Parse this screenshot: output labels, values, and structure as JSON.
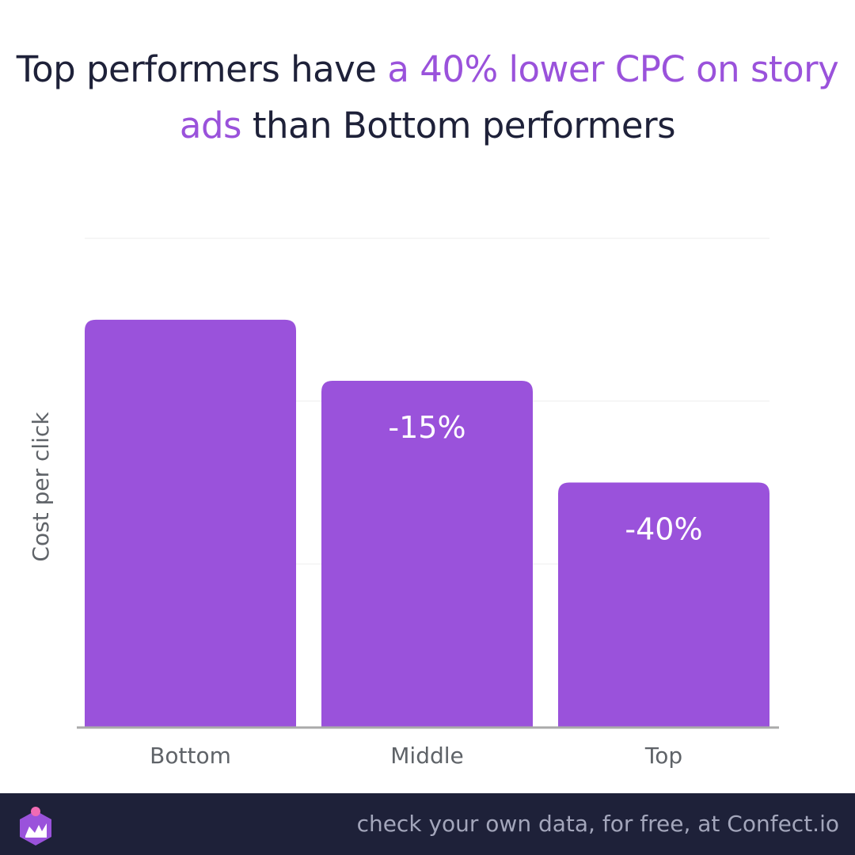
{
  "title": {
    "part1": "Top performers have ",
    "highlight": "a 40% lower CPC on story ads",
    "part2": " than Bottom performers"
  },
  "colors": {
    "bar": "#9a52db",
    "highlight": "#9a52db",
    "title": "#1e2139",
    "footer_bg": "#1e2139",
    "footer_text": "#a3a6bb",
    "axis": "#aaaaaa",
    "grid": "#eeeeee",
    "label": "#5f6368",
    "data_label": "#ffffff"
  },
  "chart_data": {
    "type": "bar",
    "categories": [
      "Bottom",
      "Middle",
      "Top"
    ],
    "values": [
      100,
      85,
      60
    ],
    "data_labels": [
      "",
      "-15%",
      "-40%"
    ],
    "ylabel": "Cost per click",
    "xlabel": "",
    "ylim": [
      0,
      120
    ],
    "grid": true,
    "y_tick_labels_shown": false
  },
  "footer": {
    "text": "check your own data, for free, at Confect.io",
    "logo_icon": "confect-logo-icon"
  }
}
